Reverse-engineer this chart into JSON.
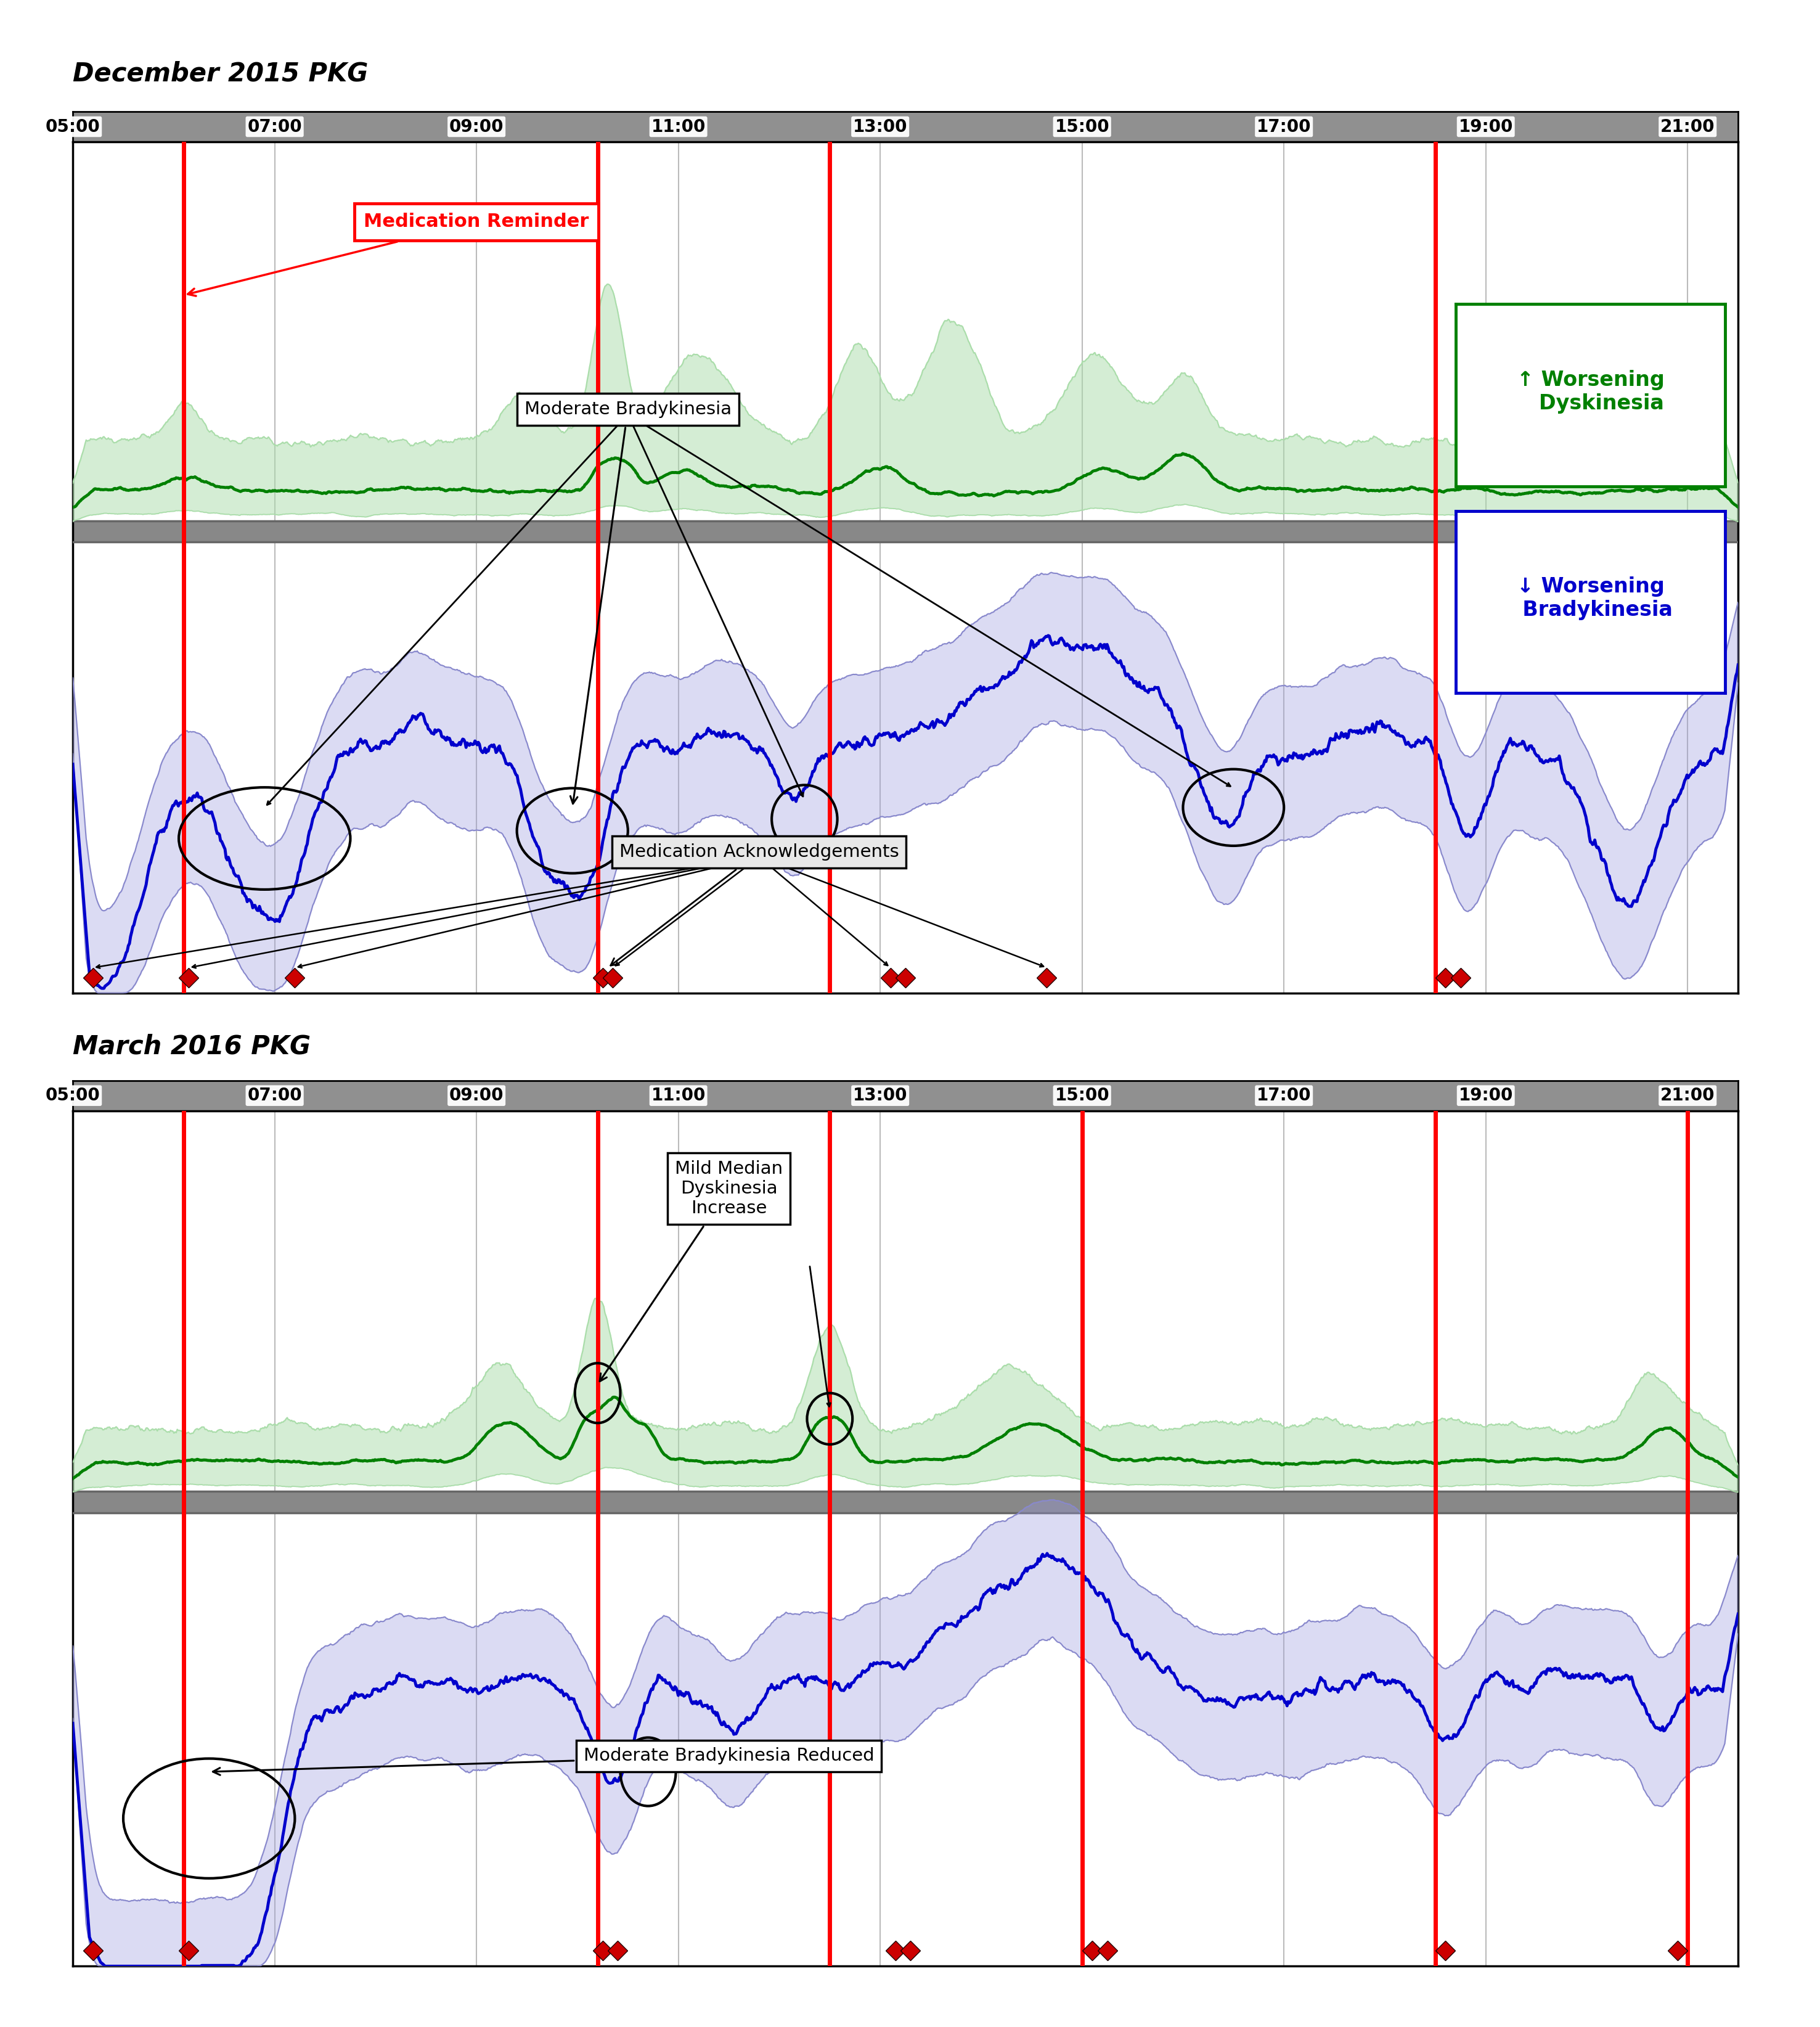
{
  "title1": "December 2015 PKG",
  "title2": "March 2016 PKG",
  "time_ticks": [
    5,
    7,
    9,
    11,
    13,
    15,
    17,
    19,
    21
  ],
  "time_labels": [
    "05:00",
    "07:00",
    "09:00",
    "11:00",
    "13:00",
    "15:00",
    "17:00",
    "19:00",
    "21:00"
  ],
  "xlim": [
    5.0,
    21.5
  ],
  "red_lines_1": [
    6.1,
    10.2,
    12.5,
    18.5
  ],
  "red_lines_2": [
    6.1,
    10.2,
    12.5,
    15.0,
    18.5,
    21.0
  ],
  "med_ack_1": [
    5.2,
    6.15,
    7.2,
    10.25,
    10.35,
    13.1,
    13.25,
    14.65,
    18.6,
    18.75
  ],
  "med_ack_2": [
    5.2,
    6.15,
    10.25,
    10.4,
    13.15,
    13.3,
    15.1,
    15.25,
    18.6,
    20.9
  ],
  "bg_color": "#ffffff",
  "header_color": "#909090",
  "grid_color": "#bbbbbb",
  "green_dark": "#008000",
  "green_light": "#aaddaa",
  "blue_dark": "#0000cc",
  "blue_light": "#8888cc",
  "red_line_color": "#ff0000",
  "diamond_color": "#cc0000",
  "legend1_text": "↑ Worsening\n   Dyskinesia",
  "legend2_text": "↓ Worsening\n  Bradykinesia"
}
